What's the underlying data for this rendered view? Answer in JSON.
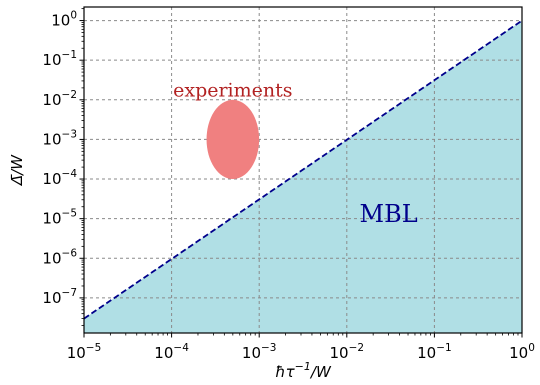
{
  "chart_data": {
    "type": "area",
    "x_scale": "log",
    "y_scale": "log",
    "xlim": [
      1e-05,
      1
    ],
    "ylim": [
      1.3e-08,
      2.2
    ],
    "xlabel_parts": {
      "main": "ħτ",
      "sup": "−1",
      "tail": "/W"
    },
    "ylabel_parts": {
      "main": "Δ̄/W"
    },
    "grid": true,
    "x_ticks": [
      {
        "value": 1e-05,
        "base": "10",
        "exp": "−5"
      },
      {
        "value": 0.0001,
        "base": "10",
        "exp": "−4"
      },
      {
        "value": 0.001,
        "base": "10",
        "exp": "−3"
      },
      {
        "value": 0.01,
        "base": "10",
        "exp": "−2"
      },
      {
        "value": 0.1,
        "base": "10",
        "exp": "−1"
      },
      {
        "value": 1,
        "base": "10",
        "exp": "0"
      }
    ],
    "y_ticks": [
      {
        "value": 1e-07,
        "base": "10",
        "exp": "−7"
      },
      {
        "value": 1e-06,
        "base": "10",
        "exp": "−6"
      },
      {
        "value": 1e-05,
        "base": "10",
        "exp": "−5"
      },
      {
        "value": 0.0001,
        "base": "10",
        "exp": "−4"
      },
      {
        "value": 0.001,
        "base": "10",
        "exp": "−3"
      },
      {
        "value": 0.01,
        "base": "10",
        "exp": "−2"
      },
      {
        "value": 0.1,
        "base": "10",
        "exp": "−1"
      },
      {
        "value": 1,
        "base": "10",
        "exp": "0"
      }
    ],
    "boundary_line": {
      "x": [
        1e-05,
        1
      ],
      "y": [
        3e-08,
        1
      ],
      "style": "dashed",
      "color": "#00008b"
    },
    "region": {
      "label": "MBL",
      "label_at": {
        "x": 0.03,
        "y": 1.2e-05
      },
      "fill": "#b0dfe5",
      "label_color": "#00008b"
    },
    "experiments": {
      "label": "experiments",
      "label_at": {
        "x": 0.0005,
        "y": 0.012
      },
      "center": {
        "x": 0.0005,
        "y": 0.001
      },
      "x_span_decades": 0.6,
      "y_span_decades": 2,
      "fill": "#f08080",
      "label_color": "#b22222"
    }
  }
}
